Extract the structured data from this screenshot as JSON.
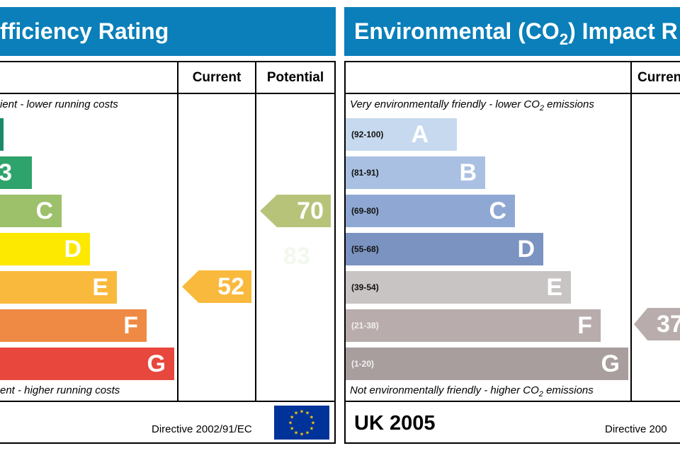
{
  "left_panel": {
    "title": "fficiency Rating",
    "col_current": "Current",
    "col_potential": "Potential",
    "top_caption": "ient - lower running costs",
    "bottom_caption": "ent - higher running costs",
    "bands": [
      {
        "letter": "",
        "color": "#1a8a6a"
      },
      {
        "letter": "3",
        "color": "#2ea36b"
      },
      {
        "letter": "C",
        "color": "#9dc06a"
      },
      {
        "letter": "D",
        "color": "#fde800"
      },
      {
        "letter": "E",
        "color": "#f9b93c"
      },
      {
        "letter": "F",
        "color": "#ef8a45"
      },
      {
        "letter": "G",
        "color": "#e8473d"
      }
    ],
    "current_value": "52",
    "current_color": "#f9b93c",
    "potential_value": "70",
    "potential_color": "#b8c37a",
    "ghost_value": "83",
    "directive": "Directive 2002/91/EC"
  },
  "right_panel": {
    "title": "Environmental (CO2) Impact R",
    "title_prefix": "Environmental (CO",
    "title_sub": "2",
    "title_suffix": ") Impact R",
    "col_current": "Curren",
    "top_caption_prefix": "Very environmentally friendly - lower CO",
    "top_caption_sub": "2",
    "top_caption_suffix": " emissions",
    "bottom_caption_prefix": "Not environmentally friendly - higher CO",
    "bottom_caption_sub": "2",
    "bottom_caption_suffix": " emissions",
    "bands": [
      {
        "range": "(92-100)",
        "letter": "A",
        "color": "#c6d9ee"
      },
      {
        "range": "(81-91)",
        "letter": "B",
        "color": "#a9c0e2"
      },
      {
        "range": "(69-80)",
        "letter": "C",
        "color": "#8fa8d3"
      },
      {
        "range": "(55-68)",
        "letter": "D",
        "color": "#7a93c0"
      },
      {
        "range": "(39-54)",
        "letter": "E",
        "color": "#c9c4c4"
      },
      {
        "range": "(21-38)",
        "letter": "F",
        "color": "#b8acac"
      },
      {
        "range": "(1-20)",
        "letter": "G",
        "color": "#a89e9e"
      }
    ],
    "current_value": "37",
    "current_color": "#b8acac",
    "region": "UK 2005",
    "directive": "Directive 200"
  }
}
